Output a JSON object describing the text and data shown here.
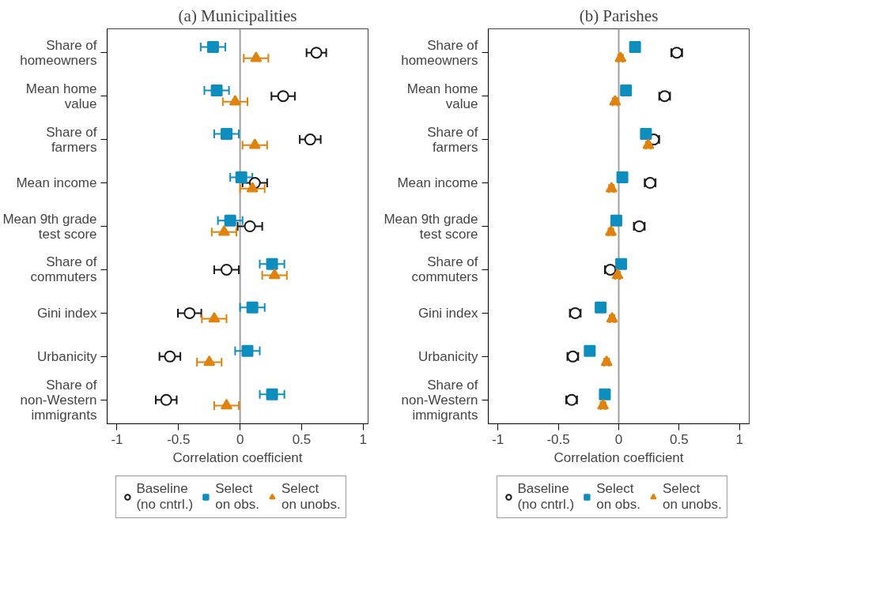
{
  "chart_data": [
    {
      "type": "scatter",
      "orientation": "horizontal",
      "title": "(a) Municipalities",
      "xlabel": "Correlation coefficient",
      "categories": [
        "Share of\nhomeowners",
        "Mean home\nvalue",
        "Share of\nfarmers",
        "Mean income",
        "Mean 9th grade\ntest score",
        "Share of\ncommuters",
        "Gini index",
        "Urbanicity",
        "Share of\nnon-Western\nimmigrants"
      ],
      "xlim": [
        -1.08,
        1.04
      ],
      "xticks": [
        -1,
        -0.5,
        0,
        0.5,
        1
      ],
      "grid": false,
      "legend": "bottom",
      "ref_lines": [
        {
          "axis": "x",
          "value": 0,
          "color": "#a0a0a0"
        }
      ],
      "series": [
        {
          "name": "Baseline\n(no cntrl.)",
          "color": "#1a1a1a",
          "marker": "circle",
          "values": [
            0.62,
            0.35,
            0.57,
            0.12,
            0.08,
            -0.11,
            -0.41,
            -0.57,
            -0.6
          ],
          "errors": [
            0.08,
            0.095,
            0.085,
            0.1,
            0.1,
            0.1,
            0.095,
            0.085,
            0.085
          ]
        },
        {
          "name": "Select\non obs.",
          "color": "#0e8dbf",
          "marker": "square",
          "values": [
            -0.22,
            -0.19,
            -0.11,
            0.01,
            -0.08,
            0.26,
            0.1,
            0.06,
            0.26
          ],
          "errors": [
            0.1,
            0.1,
            0.1,
            0.09,
            0.1,
            0.1,
            0.1,
            0.1,
            0.1
          ]
        },
        {
          "name": "Select\non unobs.",
          "color": "#e0820c",
          "marker": "triangle",
          "values": [
            0.13,
            -0.04,
            0.12,
            0.1,
            -0.13,
            0.28,
            -0.21,
            -0.25,
            -0.11
          ],
          "errors": [
            0.1,
            0.1,
            0.1,
            0.1,
            0.1,
            0.1,
            0.1,
            0.1,
            0.1
          ]
        }
      ]
    },
    {
      "type": "scatter",
      "orientation": "horizontal",
      "title": "(b) Parishes",
      "xlabel": "Correlation coefficient",
      "categories": [
        "Share of\nhomeowners",
        "Mean home\nvalue",
        "Share of\nfarmers",
        "Mean income",
        "Mean 9th grade\ntest score",
        "Share of\ncommuters",
        "Gini index",
        "Urbanicity",
        "Share of\nnon-Western\nimmigrants"
      ],
      "xlim": [
        -1.08,
        1.08
      ],
      "xticks": [
        -1,
        -0.5,
        0,
        0.5,
        1
      ],
      "grid": false,
      "legend": "bottom",
      "ref_lines": [
        {
          "axis": "x",
          "value": 0,
          "color": "#a0a0a0"
        }
      ],
      "series": [
        {
          "name": "Baseline\n(no cntrl.)",
          "color": "#1a1a1a",
          "marker": "circle",
          "values": [
            0.48,
            0.38,
            0.29,
            0.26,
            0.17,
            -0.07,
            -0.36,
            -0.38,
            -0.39
          ],
          "errors": [
            0.045,
            0.045,
            0.045,
            0.045,
            0.045,
            0.045,
            0.045,
            0.045,
            0.045
          ]
        },
        {
          "name": "Select\non obs.",
          "color": "#0e8dbf",
          "marker": "square",
          "values": [
            0.135,
            0.06,
            0.225,
            0.03,
            -0.02,
            0.02,
            -0.15,
            -0.24,
            -0.115
          ],
          "errors": [
            0.02,
            0.02,
            0.02,
            0.02,
            0.02,
            0.02,
            0.02,
            0.02,
            0.02
          ]
        },
        {
          "name": "Select\non unobs.",
          "color": "#e0820c",
          "marker": "triangle",
          "values": [
            0.015,
            -0.03,
            0.245,
            -0.06,
            -0.065,
            -0.01,
            -0.055,
            -0.1,
            -0.13
          ],
          "errors": [
            0.02,
            0.02,
            0.02,
            0.02,
            0.02,
            0.02,
            0.02,
            0.02,
            0.02
          ]
        }
      ]
    }
  ]
}
